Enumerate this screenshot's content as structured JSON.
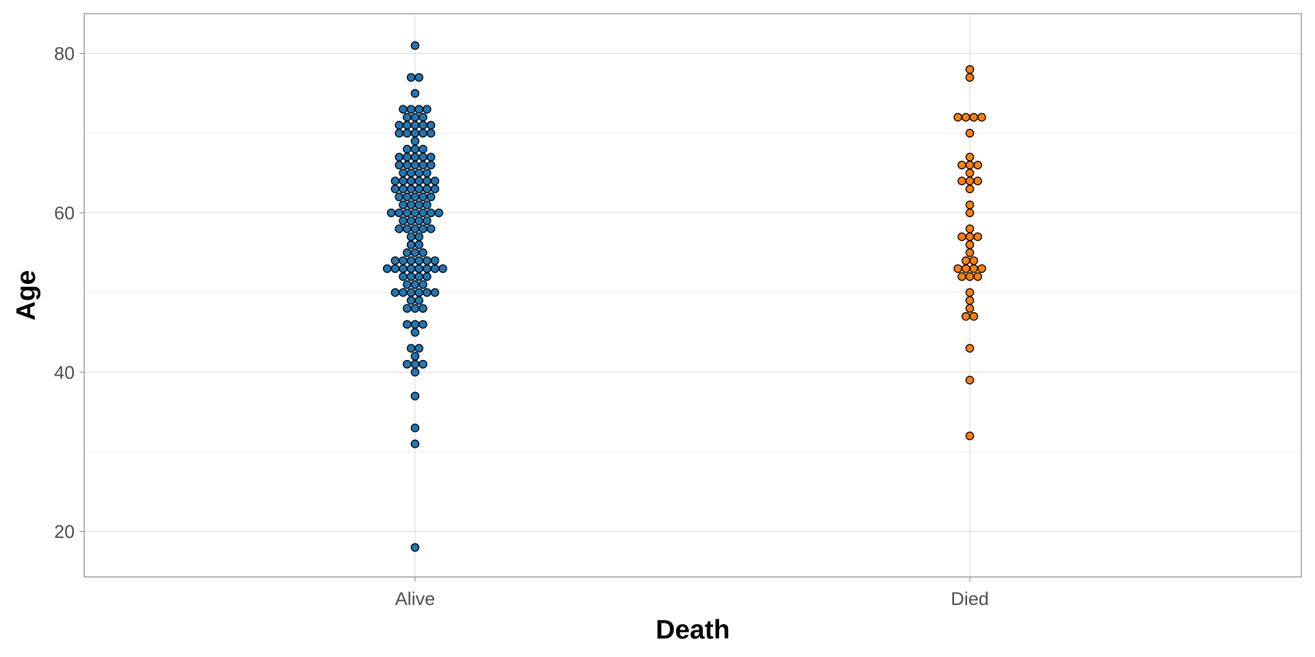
{
  "chart_data": {
    "type": "scatter",
    "subtype": "beeswarm",
    "title": "",
    "xlabel": "Death",
    "ylabel": "Age",
    "categories": [
      "Alive",
      "Died"
    ],
    "ylim": [
      14.3,
      85
    ],
    "y_ticks": [
      20,
      40,
      60,
      80
    ],
    "grid": true,
    "legend": "none",
    "colors": {
      "Alive": "#1f77b4",
      "Died": "#ff7f0e"
    },
    "series": [
      {
        "category": "Alive",
        "values": [
          18,
          31,
          33,
          37,
          40,
          41,
          41,
          41,
          42,
          43,
          43,
          45,
          46,
          46,
          46,
          48,
          48,
          48,
          49,
          49,
          50,
          50,
          50,
          50,
          50,
          50,
          51,
          51,
          51,
          52,
          52,
          52,
          52,
          53,
          53,
          53,
          53,
          53,
          53,
          53,
          53,
          54,
          54,
          54,
          54,
          54,
          54,
          55,
          55,
          55,
          56,
          56,
          57,
          57,
          58,
          58,
          58,
          58,
          58,
          59,
          59,
          59,
          59,
          60,
          60,
          60,
          60,
          60,
          60,
          60,
          61,
          61,
          61,
          61,
          62,
          62,
          62,
          62,
          62,
          63,
          63,
          63,
          63,
          63,
          63,
          64,
          64,
          64,
          64,
          64,
          64,
          65,
          65,
          65,
          65,
          66,
          66,
          66,
          66,
          66,
          67,
          67,
          67,
          67,
          67,
          68,
          68,
          68,
          69,
          70,
          70,
          70,
          70,
          70,
          71,
          71,
          71,
          71,
          71,
          72,
          72,
          72,
          73,
          73,
          73,
          73,
          75,
          77,
          77,
          81
        ]
      },
      {
        "category": "Died",
        "values": [
          32,
          39,
          43,
          47,
          47,
          48,
          49,
          50,
          52,
          52,
          52,
          53,
          53,
          53,
          53,
          54,
          54,
          55,
          56,
          57,
          57,
          57,
          58,
          60,
          61,
          63,
          64,
          64,
          64,
          65,
          66,
          66,
          66,
          67,
          70,
          72,
          72,
          72,
          72,
          77,
          78
        ]
      }
    ]
  }
}
